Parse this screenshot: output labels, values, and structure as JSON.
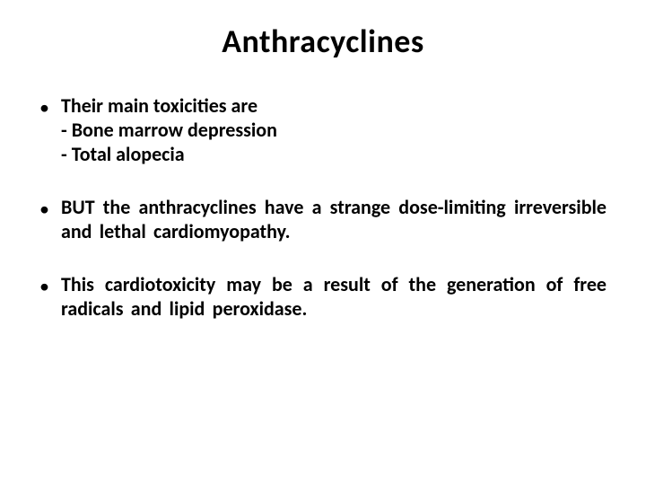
{
  "slide": {
    "title": "Anthracyclines",
    "title_fontsize": 36,
    "body_fontsize": 22,
    "text_color": "#000000",
    "background_color": "#ffffff",
    "bullets": [
      {
        "lead": "Their  main  toxicities  are",
        "subs": [
          "- Bone marrow depression",
          "- Total alopecia"
        ],
        "justify": false
      },
      {
        "lead": " BUT  the  anthracyclines  have  a  strange  dose-limiting irreversible  and  lethal  cardiomyopathy.",
        "subs": [],
        "justify": true
      },
      {
        "lead": "This cardiotoxicity may be a result of the generation of free radicals and lipid peroxidase.",
        "subs": [],
        "justify": true
      }
    ],
    "bullet_glyph": "•"
  }
}
